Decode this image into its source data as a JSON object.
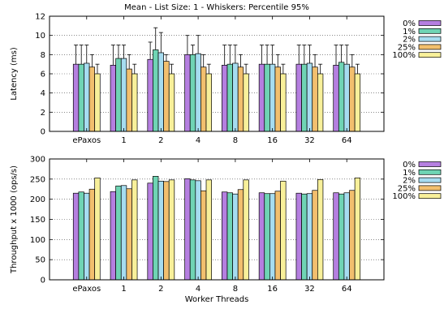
{
  "chart_data": [
    {
      "type": "bar",
      "title": "Mean - List Size: 1 - Whiskers: Percentile 95%",
      "xlabel": "",
      "ylabel": "Latency (ms)",
      "ylim": [
        0,
        12
      ],
      "yticks": [
        0,
        2,
        4,
        6,
        8,
        10,
        12
      ],
      "grid": true,
      "legend_position": "right",
      "categories": [
        "ePaxos",
        "1",
        "2",
        "4",
        "8",
        "16",
        "32",
        "64"
      ],
      "series": [
        {
          "name": "0%",
          "color": "#b57fe0",
          "values": [
            7.0,
            6.9,
            7.5,
            8.0,
            6.9,
            7.0,
            7.0,
            6.9
          ],
          "whisker": [
            9.0,
            9.0,
            9.3,
            10.0,
            9.0,
            9.0,
            9.0,
            9.0
          ]
        },
        {
          "name": "1%",
          "color": "#6fd4b4",
          "values": [
            7.0,
            7.6,
            8.5,
            8.0,
            7.0,
            7.0,
            7.0,
            7.2
          ],
          "whisker": [
            9.0,
            9.0,
            10.8,
            9.0,
            9.0,
            9.0,
            9.0,
            9.0
          ]
        },
        {
          "name": "2%",
          "color": "#a6dcf0",
          "values": [
            7.1,
            7.6,
            8.2,
            8.1,
            7.1,
            7.0,
            7.1,
            7.0
          ],
          "whisker": [
            9.0,
            9.0,
            10.3,
            10.0,
            9.0,
            9.0,
            9.0,
            9.0
          ]
        },
        {
          "name": "25%",
          "color": "#f2bf6e",
          "values": [
            6.7,
            6.5,
            7.3,
            6.7,
            6.7,
            6.7,
            6.7,
            6.7
          ],
          "whisker": [
            8.0,
            8.0,
            8.0,
            8.0,
            8.0,
            8.0,
            8.0,
            8.0
          ]
        },
        {
          "name": "100%",
          "color": "#f8f09a",
          "values": [
            6.0,
            6.0,
            6.0,
            6.0,
            6.0,
            6.0,
            6.0,
            6.0
          ],
          "whisker": [
            7.0,
            7.0,
            7.0,
            7.0,
            7.0,
            7.0,
            7.0,
            7.0
          ]
        }
      ]
    },
    {
      "type": "bar",
      "title": "",
      "xlabel": "Worker Threads",
      "ylabel": "Throughput x 1000 (ops/s)",
      "ylim": [
        0,
        300
      ],
      "yticks": [
        0,
        50,
        100,
        150,
        200,
        250,
        300
      ],
      "grid": true,
      "legend_position": "right",
      "categories": [
        "ePaxos",
        "1",
        "2",
        "4",
        "8",
        "16",
        "32",
        "64"
      ],
      "series": [
        {
          "name": "0%",
          "color": "#b57fe0",
          "values": [
            215,
            219,
            240,
            251,
            218,
            216,
            215,
            216
          ]
        },
        {
          "name": "1%",
          "color": "#6fd4b4",
          "values": [
            218,
            233,
            257,
            248,
            216,
            214,
            213,
            213
          ]
        },
        {
          "name": "2%",
          "color": "#a6dcf0",
          "values": [
            215,
            234,
            245,
            246,
            213,
            214,
            214,
            216
          ]
        },
        {
          "name": "25%",
          "color": "#f2bf6e",
          "values": [
            225,
            226,
            244,
            221,
            224,
            220,
            222,
            222
          ]
        },
        {
          "name": "100%",
          "color": "#f8f09a",
          "values": [
            253,
            248,
            248,
            248,
            248,
            245,
            249,
            253
          ]
        }
      ]
    }
  ]
}
